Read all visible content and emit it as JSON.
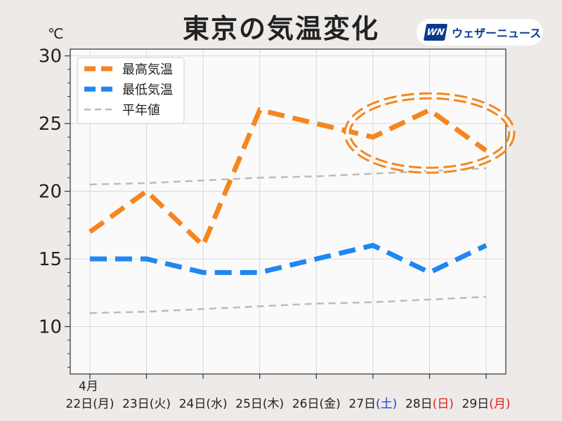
{
  "chart_data": {
    "type": "line",
    "title": "東京の気温変化",
    "unit_label": "℃",
    "brand": {
      "mark": "WN",
      "name": "ウェザーニュース",
      "color": "#0b3a8d"
    },
    "x_month_label": "4月",
    "categories": [
      {
        "day": "22日",
        "dow": "(月)",
        "dow_color": "#222222"
      },
      {
        "day": "23日",
        "dow": "(火)",
        "dow_color": "#222222"
      },
      {
        "day": "24日",
        "dow": "(水)",
        "dow_color": "#222222"
      },
      {
        "day": "25日",
        "dow": "(木)",
        "dow_color": "#222222"
      },
      {
        "day": "26日",
        "dow": "(金)",
        "dow_color": "#222222"
      },
      {
        "day": "27日",
        "dow": "(土)",
        "dow_color": "#1f3fd6"
      },
      {
        "day": "28日",
        "dow": "(日)",
        "dow_color": "#e0201a"
      },
      {
        "day": "29日",
        "dow": "(月)",
        "dow_color": "#e0201a"
      }
    ],
    "y_ticks": [
      "10",
      "15",
      "20",
      "25",
      "30"
    ],
    "ylim": [
      6.5,
      30.5
    ],
    "series": [
      {
        "name": "最高気温",
        "color": "#f5861f",
        "style": "dashed",
        "values": [
          17,
          20,
          16,
          26,
          25,
          24,
          26,
          23
        ]
      },
      {
        "name": "最低気温",
        "color": "#1f87f0",
        "style": "dashed",
        "values": [
          15,
          15,
          14,
          14,
          15,
          16,
          14,
          16
        ]
      },
      {
        "name": "平年値",
        "color": "#bbbbbb",
        "style": "dashed",
        "values": [
          20.5,
          20.6,
          20.8,
          21.0,
          21.1,
          21.3,
          21.5,
          21.7
        ]
      },
      {
        "name": "",
        "color": "#bbbbbb",
        "style": "dashed",
        "values": [
          11.0,
          11.1,
          11.3,
          11.5,
          11.7,
          11.8,
          12.0,
          12.2
        ]
      }
    ],
    "highlight": {
      "x_center": 6,
      "y_center": 24.3,
      "color": "#f5861f"
    },
    "legend_position": "top-left",
    "grid": true
  }
}
